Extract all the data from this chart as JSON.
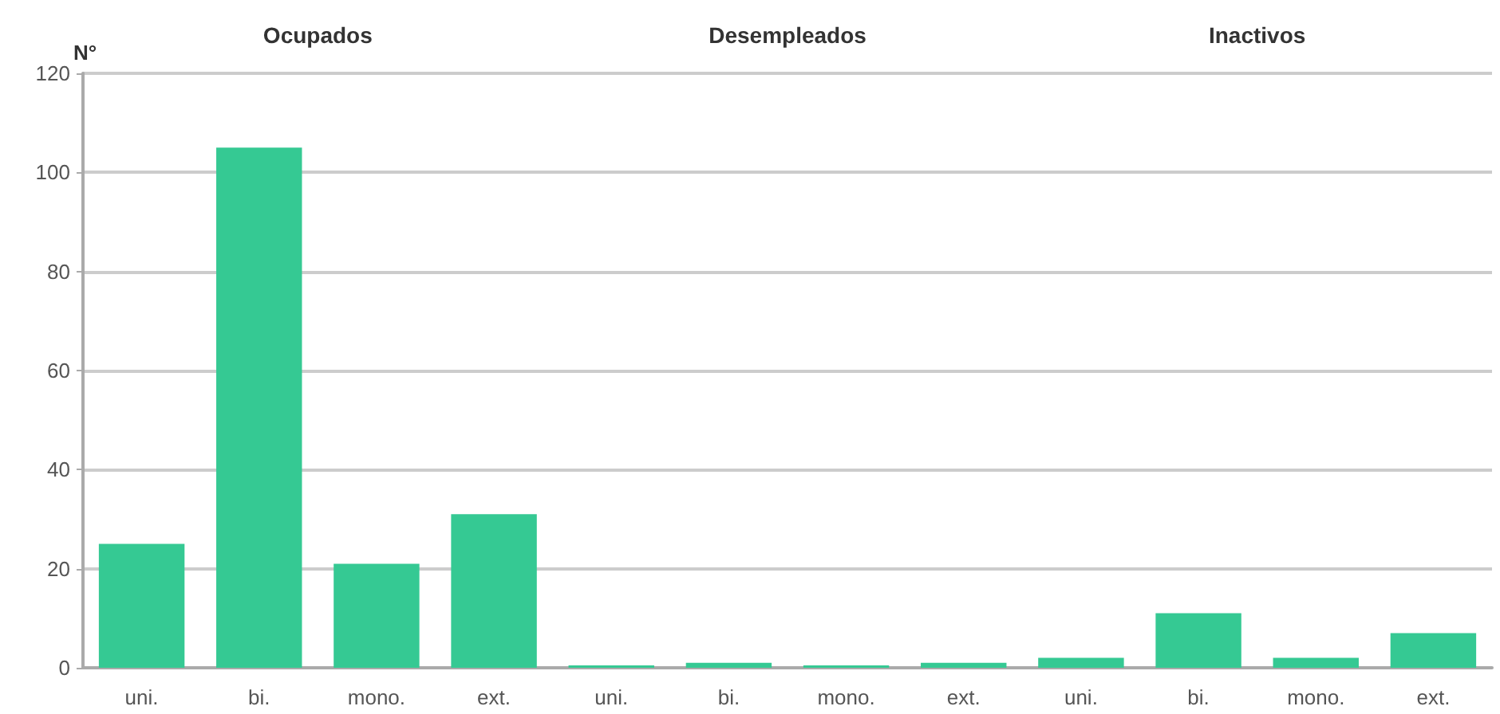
{
  "chart_data": {
    "type": "bar",
    "categories": [
      "uni.",
      "bi.",
      "mono.",
      "ext.",
      "uni.",
      "bi.",
      "mono.",
      "ext.",
      "uni.",
      "bi.",
      "mono.",
      "ext."
    ],
    "values": [
      25,
      105,
      21,
      31,
      0.5,
      1,
      0.5,
      1,
      2,
      11,
      2,
      7
    ],
    "color": "#35c993",
    "ylabel": "N°",
    "annotations": [
      "Ocupados",
      "Desempleados",
      "Inactivos"
    ],
    "ylim": [
      0,
      120
    ],
    "yticks": [
      0,
      20,
      40,
      60,
      80,
      100,
      120
    ],
    "grid": "y"
  }
}
